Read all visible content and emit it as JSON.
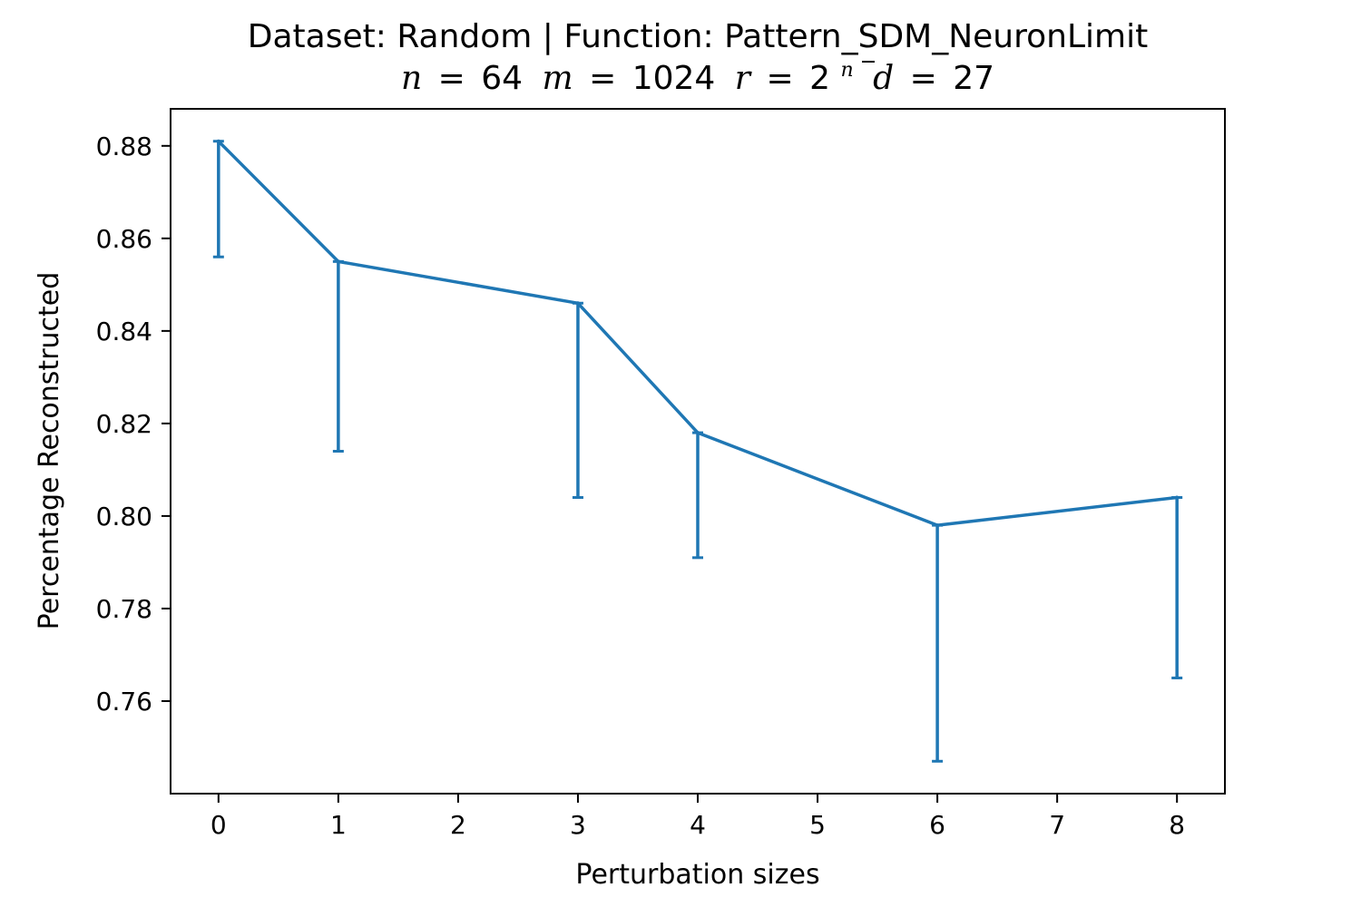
{
  "chart_data": {
    "type": "line",
    "title": "Dataset: Random | Function: Pattern_SDM_NeuronLimit",
    "subtitle": "n = 64 m = 1024 r = 2ⁿ d = 27",
    "subtitle_parts": {
      "n_symbol": "n",
      "n_value": "64",
      "m_symbol": "m",
      "m_value": "1024",
      "r_symbol": "r",
      "r_base": "2",
      "r_exp": "n",
      "d_symbol": "d",
      "d_value": "27",
      "equals": "="
    },
    "xlabel": "Perturbation sizes",
    "ylabel": "Percentage Reconstructed",
    "xlim": [
      -0.4,
      8.4
    ],
    "ylim": [
      0.74,
      0.888
    ],
    "xticks": [
      0,
      1,
      2,
      3,
      4,
      5,
      6,
      7,
      8
    ],
    "yticks": [
      0.76,
      0.78,
      0.8,
      0.82,
      0.84,
      0.86,
      0.88
    ],
    "ytick_labels": [
      "0.76",
      "0.78",
      "0.80",
      "0.82",
      "0.84",
      "0.86",
      "0.88"
    ],
    "grid": false,
    "series": [
      {
        "color": "#1f77b4",
        "x": [
          0,
          1,
          3,
          4,
          6,
          8
        ],
        "y": [
          0.881,
          0.855,
          0.846,
          0.818,
          0.798,
          0.804
        ],
        "error_lower": [
          0.856,
          0.814,
          0.804,
          0.791,
          0.747,
          0.765
        ],
        "error_upper": [
          0.881,
          0.855,
          0.846,
          0.818,
          0.798,
          0.804
        ]
      }
    ]
  }
}
